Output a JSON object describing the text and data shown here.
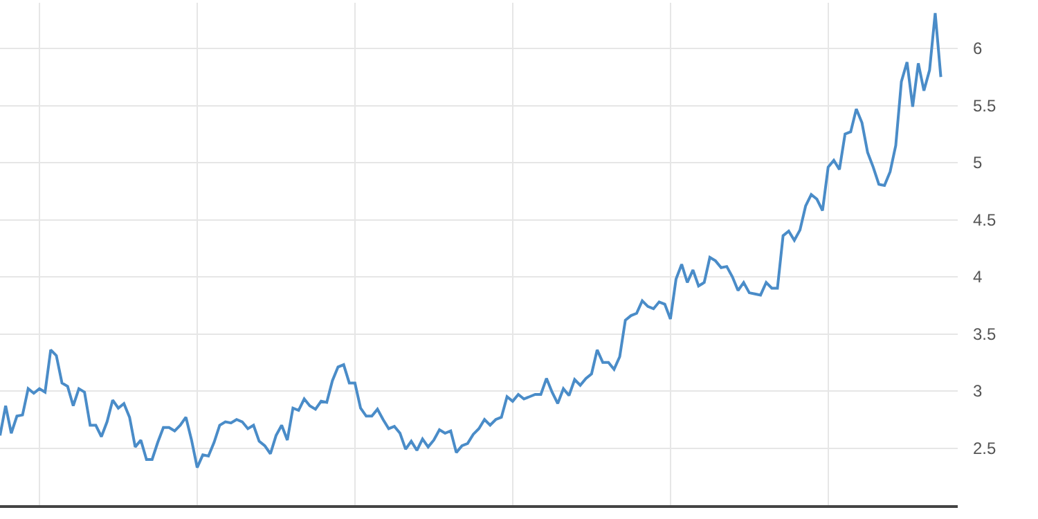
{
  "chart_data": {
    "type": "line",
    "categories": [
      null,
      null,
      null,
      null,
      null,
      null,
      null,
      null,
      null,
      null,
      null,
      null,
      null,
      null,
      null,
      null,
      null,
      null,
      null,
      null,
      null,
      null,
      null,
      null,
      null,
      null,
      null,
      null,
      null,
      null,
      null,
      null,
      null,
      null,
      null,
      null,
      null,
      null,
      null,
      null,
      null,
      null,
      null,
      null,
      null,
      null,
      null,
      null,
      null,
      null,
      null,
      null,
      null,
      null,
      null,
      null,
      null,
      null,
      null,
      null,
      null,
      null,
      null,
      null,
      null,
      null,
      null,
      null,
      null,
      null,
      null,
      null,
      null,
      null,
      null,
      null,
      null,
      null,
      null,
      null,
      null,
      null,
      null,
      null,
      null,
      null,
      null,
      null,
      null,
      null,
      null,
      null,
      null,
      null,
      null,
      null,
      null,
      null,
      null,
      null,
      null,
      null,
      null,
      null,
      null,
      null,
      null,
      null,
      null,
      null,
      null,
      null,
      null,
      null,
      null,
      null,
      null,
      null,
      null,
      null,
      null,
      null,
      null,
      null,
      null,
      null,
      null,
      null,
      null,
      null,
      null,
      null,
      null,
      null,
      null,
      null,
      null,
      null,
      null,
      null,
      null,
      null,
      null,
      null,
      null,
      null,
      null,
      null,
      null,
      null,
      null,
      null,
      null,
      null,
      null,
      null,
      null,
      null,
      null,
      null,
      null,
      null,
      null,
      null,
      null,
      null,
      null,
      null
    ],
    "series": [
      {
        "color": "#4a8cc8",
        "values": [
          2.61,
          2.87,
          2.63,
          2.78,
          2.79,
          3.02,
          2.98,
          3.02,
          2.99,
          3.36,
          3.31,
          3.07,
          3.04,
          2.87,
          3.02,
          2.99,
          2.7,
          2.7,
          2.6,
          2.73,
          2.92,
          2.85,
          2.89,
          2.77,
          2.51,
          2.57,
          2.4,
          2.4,
          2.55,
          2.68,
          2.68,
          2.65,
          2.7,
          2.77,
          2.57,
          2.33,
          2.44,
          2.43,
          2.55,
          2.7,
          2.73,
          2.72,
          2.75,
          2.73,
          2.67,
          2.7,
          2.56,
          2.52,
          2.45,
          2.61,
          2.7,
          2.57,
          2.85,
          2.83,
          2.93,
          2.87,
          2.84,
          2.91,
          2.9,
          3.09,
          3.21,
          3.23,
          3.07,
          3.07,
          2.85,
          2.78,
          2.78,
          2.84,
          2.75,
          2.67,
          2.69,
          2.63,
          2.49,
          2.56,
          2.48,
          2.58,
          2.51,
          2.57,
          2.66,
          2.63,
          2.65,
          2.46,
          2.52,
          2.54,
          2.62,
          2.67,
          2.75,
          2.7,
          2.75,
          2.77,
          2.95,
          2.91,
          2.97,
          2.93,
          2.95,
          2.97,
          2.97,
          3.11,
          2.99,
          2.89,
          3.02,
          2.96,
          3.1,
          3.05,
          3.11,
          3.15,
          3.36,
          3.25,
          3.25,
          3.19,
          3.3,
          3.62,
          3.66,
          3.68,
          3.79,
          3.74,
          3.72,
          3.78,
          3.76,
          3.63,
          3.98,
          4.11,
          3.95,
          4.06,
          3.92,
          3.95,
          4.17,
          4.14,
          4.08,
          4.09,
          4.0,
          3.88,
          3.95,
          3.86,
          3.85,
          3.84,
          3.95,
          3.9,
          3.9,
          4.36,
          4.4,
          4.32,
          4.41,
          4.62,
          4.72,
          4.68,
          4.58,
          4.96,
          5.02,
          4.94,
          5.25,
          5.27,
          5.47,
          5.35,
          5.09,
          4.96,
          4.81,
          4.8,
          4.92,
          5.15,
          5.71,
          5.88,
          5.49,
          5.87,
          5.63,
          5.81,
          6.31,
          5.75
        ]
      }
    ],
    "ylim": [
      2,
      6.4
    ],
    "yticks": [
      2.5,
      3,
      3.5,
      4,
      4.5,
      5,
      5.5,
      6
    ],
    "grid": true,
    "tick_labels": "y",
    "marker": "none",
    "line_style": "solid"
  }
}
